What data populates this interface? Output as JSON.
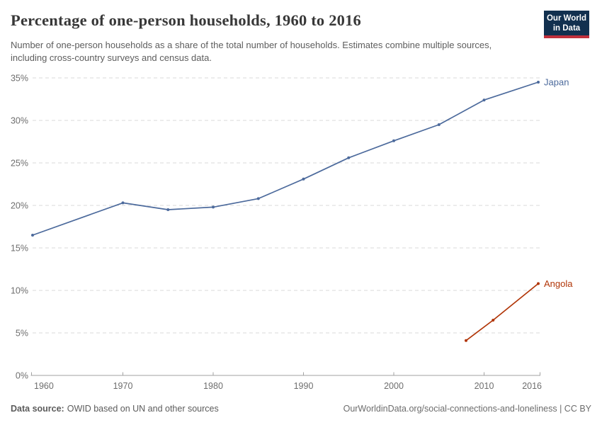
{
  "header": {
    "title": "Percentage of one-person households, 1960 to 2016",
    "subtitle": "Number of one-person households as a share of the total number of households. Estimates combine multiple sources, including cross-country surveys and census data.",
    "logo": {
      "line1": "Our World",
      "line2": "in Data",
      "background_color": "#12304F",
      "stripe_color": "#C0303C"
    }
  },
  "footer": {
    "source_label": "Data source:",
    "source_text": "OWID based on UN and other sources",
    "attribution": "OurWorldinData.org/social-connections-and-loneliness | CC BY"
  },
  "chart_data": {
    "type": "line",
    "title": "Percentage of one-person households, 1960 to 2016",
    "xlabel": "",
    "ylabel": "",
    "xlim": [
      1960,
      2016
    ],
    "ylim": [
      0,
      35
    ],
    "xticks": [
      1960,
      1970,
      1980,
      1990,
      2000,
      2010,
      2016
    ],
    "yticks": [
      0,
      5,
      10,
      15,
      20,
      25,
      30,
      35
    ],
    "ytick_suffix": "%",
    "grid": "horizontal-dashed",
    "legend_position": "labels-at-line-end",
    "colors": {
      "gridline": "#d9d9d9",
      "axis": "#a2a2a2",
      "tick_label": "#6e6e6e"
    },
    "series": [
      {
        "name": "Japan",
        "color": "#4C6A9C",
        "points": [
          [
            1960,
            16.5
          ],
          [
            1970,
            20.3
          ],
          [
            1975,
            19.5
          ],
          [
            1980,
            19.8
          ],
          [
            1985,
            20.8
          ],
          [
            1990,
            23.1
          ],
          [
            1995,
            25.6
          ],
          [
            2000,
            27.6
          ],
          [
            2005,
            29.5
          ],
          [
            2010,
            32.4
          ],
          [
            2016,
            34.5
          ]
        ]
      },
      {
        "name": "Angola",
        "color": "#B13507",
        "points": [
          [
            2008,
            4.1
          ],
          [
            2011,
            6.5
          ],
          [
            2016,
            10.8
          ]
        ]
      }
    ]
  }
}
